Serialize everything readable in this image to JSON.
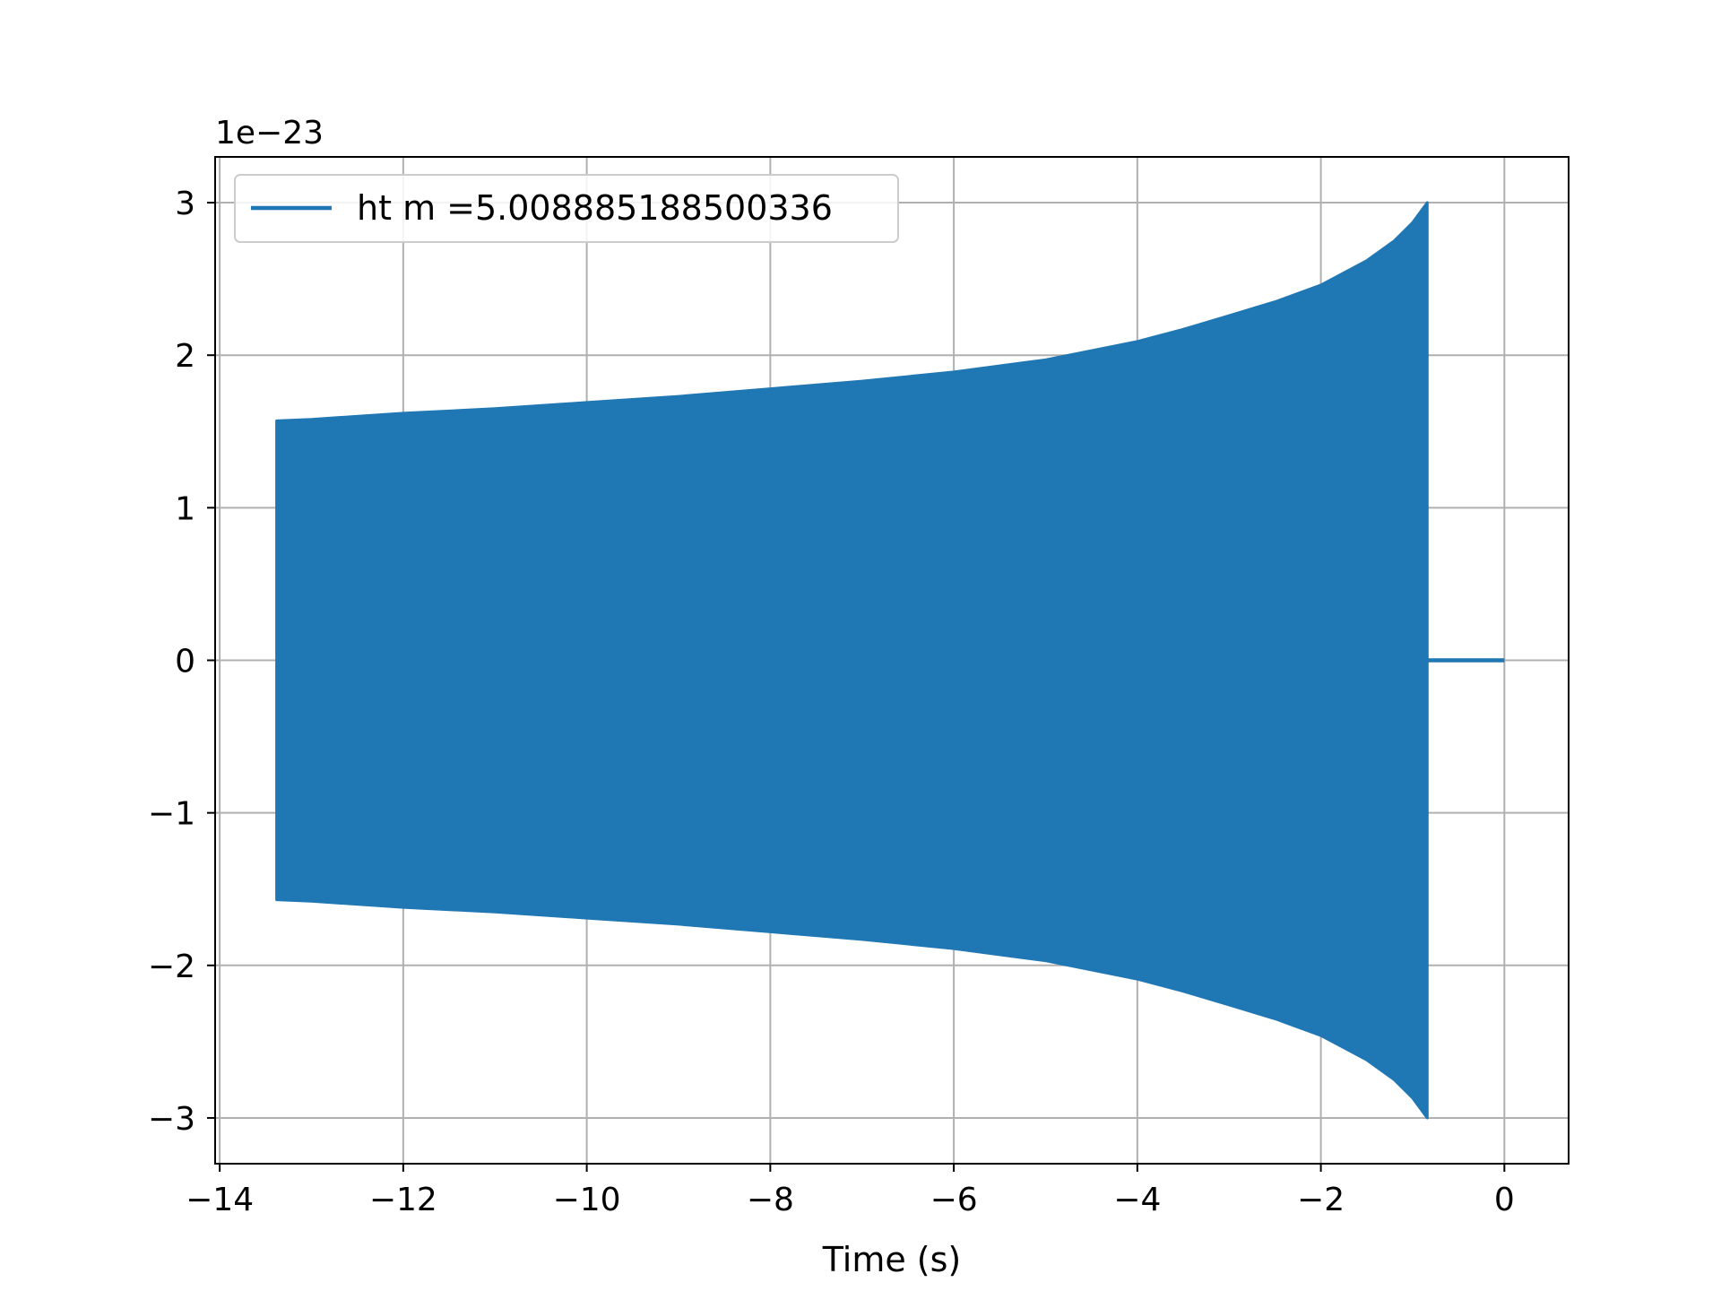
{
  "chart_data": {
    "type": "line",
    "xlabel": "Time (s)",
    "ylabel": "",
    "y_offset_label": "1e−23",
    "xlim": [
      -14.05,
      0.7
    ],
    "ylim": [
      -3.3,
      3.3
    ],
    "xticks": [
      -14,
      -12,
      -10,
      -8,
      -6,
      -4,
      -2,
      0
    ],
    "xtick_labels": [
      "−14",
      "−12",
      "−10",
      "−8",
      "−6",
      "−4",
      "−2",
      "0"
    ],
    "yticks": [
      -3,
      -2,
      -1,
      0,
      1,
      2,
      3
    ],
    "ytick_labels": [
      "−3",
      "−2",
      "−1",
      "0",
      "1",
      "2",
      "3"
    ],
    "grid": true,
    "legend_position": "top-left",
    "series": [
      {
        "name": "ht m =5.008885188500336",
        "color": "#1f77b4",
        "envelope": {
          "t": [
            -13.38,
            -13.0,
            -12.0,
            -11.0,
            -10.0,
            -9.0,
            -8.0,
            -7.0,
            -6.0,
            -5.0,
            -4.0,
            -3.5,
            -3.0,
            -2.5,
            -2.0,
            -1.5,
            -1.2,
            -1.0,
            -0.84
          ],
          "upper": [
            1.57,
            1.58,
            1.62,
            1.65,
            1.69,
            1.73,
            1.78,
            1.83,
            1.89,
            1.97,
            2.09,
            2.17,
            2.26,
            2.35,
            2.46,
            2.62,
            2.75,
            2.87,
            3.0
          ],
          "lower": [
            -1.57,
            -1.58,
            -1.62,
            -1.65,
            -1.69,
            -1.73,
            -1.78,
            -1.83,
            -1.89,
            -1.97,
            -2.09,
            -2.17,
            -2.26,
            -2.35,
            -2.46,
            -2.62,
            -2.75,
            -2.87,
            -3.0
          ]
        },
        "after_merger": {
          "x": [
            -0.84,
            0.0
          ],
          "y": [
            0,
            0
          ]
        }
      }
    ]
  }
}
